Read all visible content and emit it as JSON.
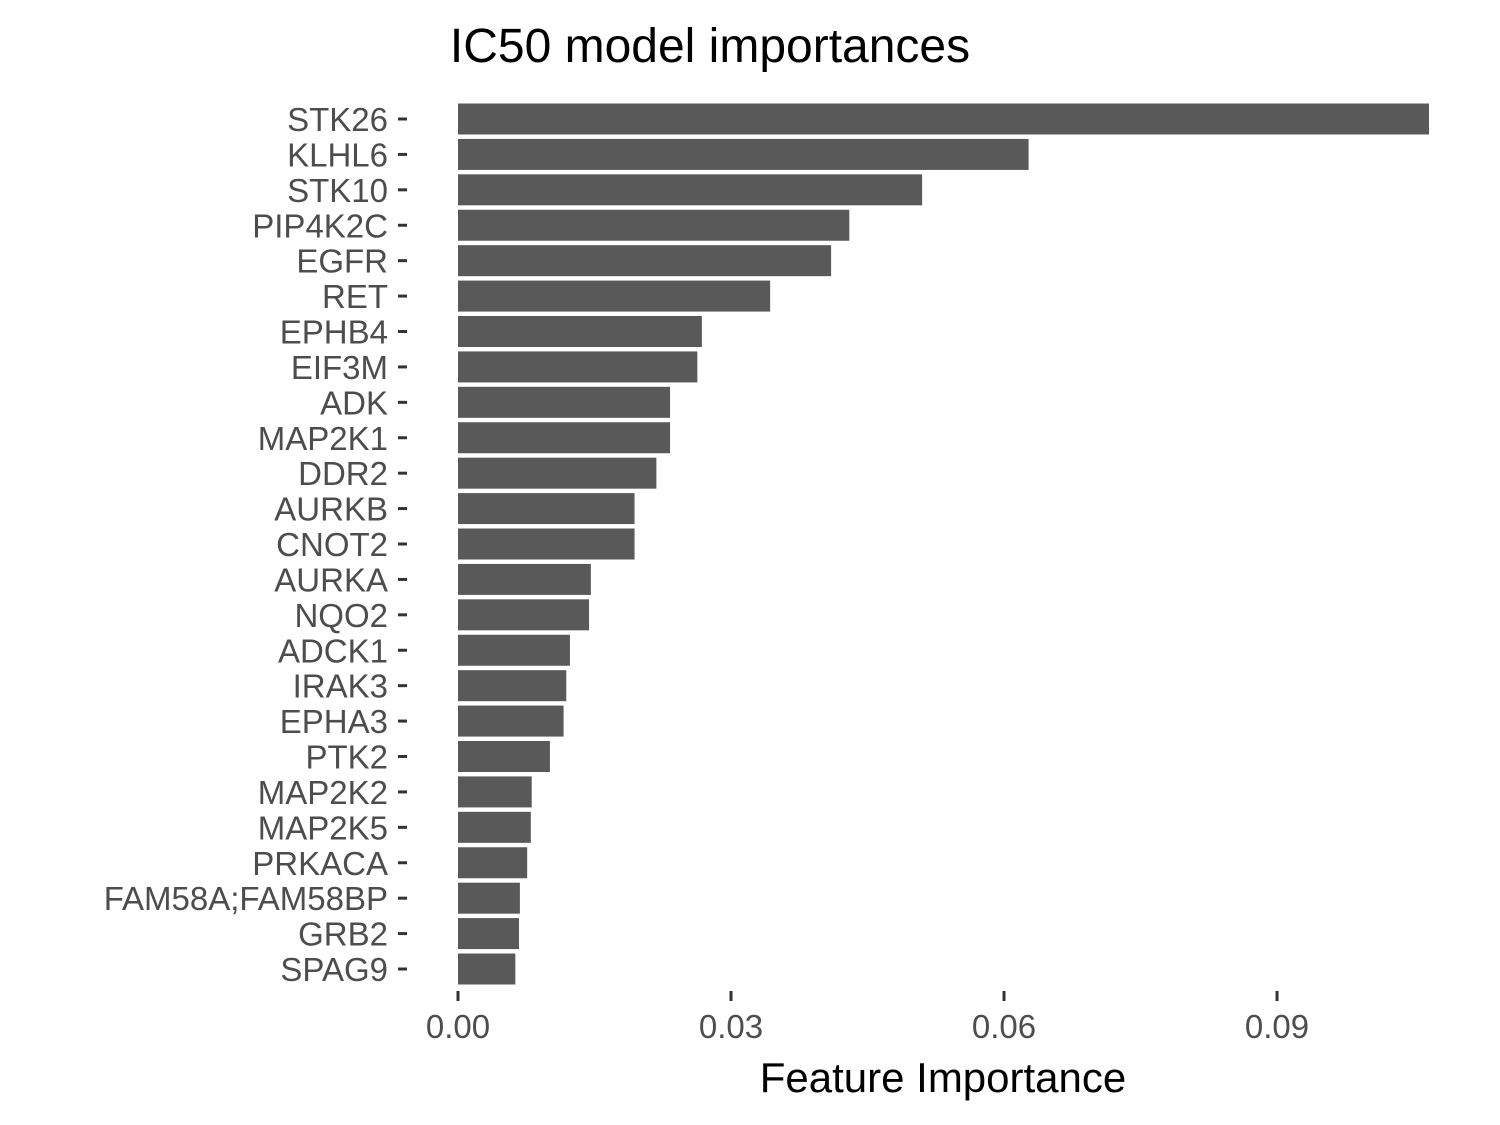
{
  "chart_data": {
    "type": "bar",
    "orientation": "horizontal",
    "title": "IC50 model importances",
    "xlabel": "Feature Importance",
    "ylabel": "",
    "categories": [
      "STK26",
      "KLHL6",
      "STK10",
      "PIP4K2C",
      "EGFR",
      "RET",
      "EPHB4",
      "EIF3M",
      "ADK",
      "MAP2K1",
      "DDR2",
      "AURKB",
      "CNOT2",
      "AURKA",
      "NQO2",
      "ADCK1",
      "IRAK3",
      "EPHA3",
      "PTK2",
      "MAP2K2",
      "MAP2K5",
      "PRKACA",
      "FAM58A;FAM58BP",
      "GRB2",
      "SPAG9"
    ],
    "values": [
      0.1067,
      0.0627,
      0.051,
      0.043,
      0.041,
      0.0343,
      0.0268,
      0.0263,
      0.0233,
      0.0233,
      0.0218,
      0.0194,
      0.0194,
      0.0146,
      0.0144,
      0.0123,
      0.0119,
      0.0116,
      0.0101,
      0.0081,
      0.008,
      0.0076,
      0.0068,
      0.0067,
      0.0063
    ],
    "xticks": [
      0.0,
      0.03,
      0.06,
      0.09
    ],
    "xtick_labels": [
      "0.00",
      "0.03",
      "0.06",
      "0.09"
    ],
    "xlim": [
      0,
      0.1067
    ],
    "grid": false,
    "bar_color": "#595959"
  }
}
